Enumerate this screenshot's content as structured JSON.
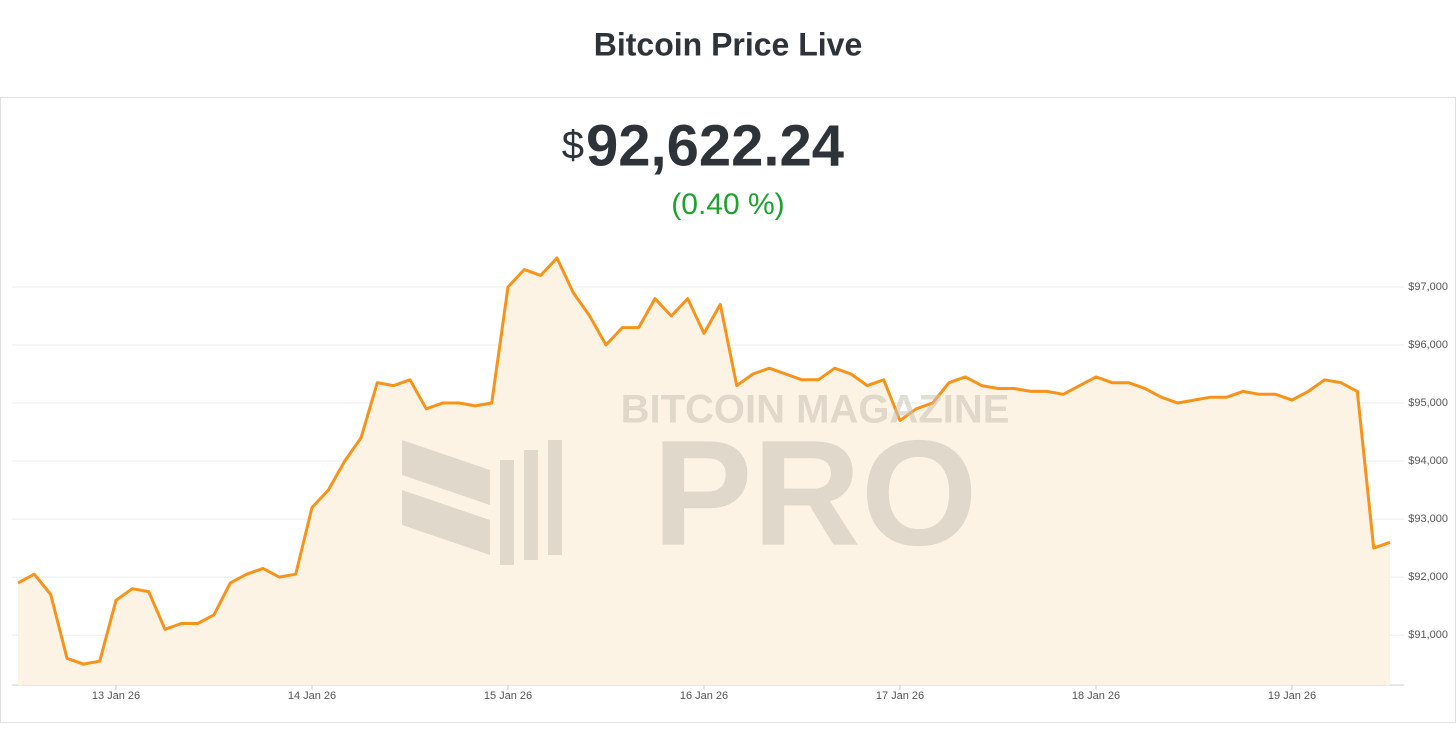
{
  "chart_data": {
    "type": "line",
    "title": "Bitcoin Price Live",
    "currency": "$",
    "price": "92,622.24",
    "change": "(0.40 %)",
    "watermark": [
      "BITCOIN MAGAZINE",
      "PRO"
    ],
    "color": "#f7931a",
    "area_color": "#fdf3e4",
    "grid": true,
    "values": [
      91900,
      92050,
      91700,
      90600,
      90500,
      90550,
      91600,
      91800,
      91750,
      91100,
      91200,
      91200,
      91350,
      91900,
      92050,
      92150,
      92000,
      92050,
      93200,
      93500,
      94000,
      94400,
      95350,
      95300,
      95400,
      94900,
      95000,
      95000,
      94950,
      95000,
      97000,
      97300,
      97200,
      97500,
      96900,
      96500,
      96000,
      96300,
      96300,
      96800,
      96500,
      96800,
      96200,
      96700,
      95300,
      95500,
      95600,
      95500,
      95400,
      95400,
      95600,
      95500,
      95300,
      95400,
      94700,
      94900,
      95000,
      95350,
      95450,
      95300,
      95250,
      95250,
      95200,
      95200,
      95150,
      95300,
      95450,
      95350,
      95350,
      95250,
      95100,
      95000,
      95050,
      95100,
      95100,
      95200,
      95150,
      95150,
      95050,
      95200,
      95400,
      95350,
      95200,
      92500,
      92600
    ],
    "xticks": [
      {
        "value": 6,
        "label": "13 Jan 26"
      },
      {
        "value": 18,
        "label": "14 Jan 26"
      },
      {
        "value": 30,
        "label": "15 Jan 26"
      },
      {
        "value": 42,
        "label": "16 Jan 26"
      },
      {
        "value": 54,
        "label": "17 Jan 26"
      },
      {
        "value": 66,
        "label": "18 Jan 26"
      },
      {
        "value": 78,
        "label": "19 Jan 26"
      }
    ],
    "ylim": [
      90140,
      98000
    ],
    "yticks": [
      {
        "value": 91000,
        "label": "$91,000"
      },
      {
        "value": 92000,
        "label": "$92,000"
      },
      {
        "value": 93000,
        "label": "$93,000"
      },
      {
        "value": 94000,
        "label": "$94,000"
      },
      {
        "value": 95000,
        "label": "$95,000"
      },
      {
        "value": 96000,
        "label": "$96,000"
      },
      {
        "value": 97000,
        "label": "$97,000"
      }
    ]
  }
}
